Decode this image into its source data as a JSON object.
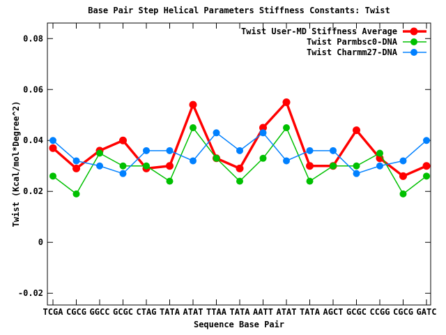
{
  "chart_data": {
    "type": "line",
    "title": "Base Pair Step Helical Parameters Stiffness Constants: Twist",
    "xlabel": "Sequence Base Pair",
    "ylabel": "Twist (Kcal/mol*Degree^2)",
    "categories": [
      "TCGA",
      "CGCG",
      "GGCC",
      "GCGC",
      "CTAG",
      "TATA",
      "ATAT",
      "TTAA",
      "TATA",
      "AATT",
      "ATAT",
      "TATA",
      "AGCT",
      "GCGC",
      "CCGG",
      "CGCG",
      "GATC"
    ],
    "ylim": [
      -0.0246,
      0.0861
    ],
    "yticks": [
      {
        "value": 0.08,
        "label": "0.08"
      },
      {
        "value": 0.06,
        "label": "0.06"
      },
      {
        "value": 0.04,
        "label": "0.04"
      },
      {
        "value": 0.02,
        "label": "0.02"
      },
      {
        "value": 0,
        "label": "0"
      },
      {
        "value": -0.02,
        "label": "-0.02"
      }
    ],
    "grid": false,
    "legend_position": "top-right-inside",
    "series": [
      {
        "name": "Twist User-MD Stiffness Average",
        "color": "#ff0000",
        "marker": "circle",
        "line_width": 3.5,
        "marker_radius": 5.5,
        "values": [
          0.037,
          0.029,
          0.036,
          0.04,
          0.029,
          0.03,
          0.054,
          0.033,
          0.029,
          0.045,
          0.055,
          0.03,
          0.03,
          0.044,
          0.033,
          0.026,
          0.03
        ]
      },
      {
        "name": "Twist Parmbsc0-DNA",
        "color": "#00c000",
        "marker": "circle",
        "line_width": 1.5,
        "marker_radius": 5,
        "values": [
          0.026,
          0.019,
          0.035,
          0.03,
          0.03,
          0.024,
          0.045,
          0.033,
          0.024,
          0.033,
          0.045,
          0.024,
          0.03,
          0.03,
          0.035,
          0.019,
          0.026
        ]
      },
      {
        "name": "Twist Charmm27-DNA",
        "color": "#0080ff",
        "marker": "circle",
        "line_width": 1.5,
        "marker_radius": 5,
        "values": [
          0.04,
          0.032,
          0.03,
          0.027,
          0.036,
          0.036,
          0.032,
          0.043,
          0.036,
          0.043,
          0.032,
          0.036,
          0.036,
          0.027,
          0.03,
          0.032,
          0.04
        ]
      }
    ]
  }
}
